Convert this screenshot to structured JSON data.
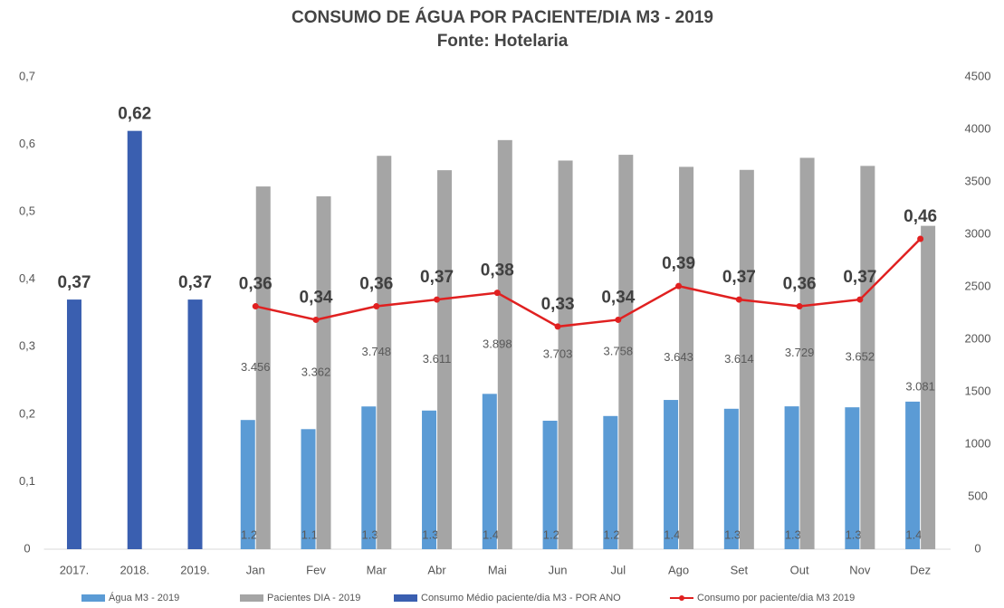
{
  "chart_data": {
    "type": "bar",
    "title": "CONSUMO DE ÁGUA POR PACIENTE/DIA M3 - 2019",
    "subtitle": "Fonte: Hotelaria",
    "categories": [
      "2017.",
      "2018.",
      "2019.",
      "Jan",
      "Fev",
      "Mar",
      "Abr",
      "Mai",
      "Jun",
      "Jul",
      "Ago",
      "Set",
      "Out",
      "Nov",
      "Dez"
    ],
    "series": [
      {
        "name": "Água M3 - 2019",
        "color": "#5b9bd5",
        "type": "bar",
        "axis": "y2",
        "values": [
          null,
          null,
          null,
          1231,
          1144,
          1360,
          1321,
          1480,
          1224,
          1269,
          1422,
          1338,
          1361,
          1352,
          1406
        ],
        "value_labels": [
          null,
          null,
          null,
          "1.231",
          "1.144",
          "1.360",
          "1.321",
          "1.480",
          "1.224",
          "1.269",
          "1.422",
          "1.338",
          "1.361",
          "1.352",
          "1.406"
        ]
      },
      {
        "name": "Pacientes DIA - 2019",
        "color": "#a5a5a5",
        "type": "bar",
        "axis": "y2",
        "values": [
          null,
          null,
          null,
          3456,
          3362,
          3748,
          3611,
          3898,
          3703,
          3758,
          3643,
          3614,
          3729,
          3652,
          3081
        ],
        "value_labels": [
          null,
          null,
          null,
          "3.456",
          "3.362",
          "3.748",
          "3.611",
          "3.898",
          "3.703",
          "3.758",
          "3.643",
          "3.614",
          "3.729",
          "3.652",
          "3.081"
        ]
      },
      {
        "name": "Consumo Médio paciente/dia M3 - POR ANO",
        "color": "#3a5fb0",
        "type": "bar",
        "values": [
          0.37,
          0.62,
          0.37,
          null,
          null,
          null,
          null,
          null,
          null,
          null,
          null,
          null,
          null,
          null,
          null
        ],
        "value_labels": [
          "0,37",
          "0,62",
          "0,37",
          null,
          null,
          null,
          null,
          null,
          null,
          null,
          null,
          null,
          null,
          null,
          null
        ]
      },
      {
        "name": "Consumo por paciente/dia M3 2019",
        "color": "#e02020",
        "type": "line",
        "values": [
          null,
          null,
          null,
          0.36,
          0.34,
          0.36,
          0.37,
          0.38,
          0.33,
          0.34,
          0.39,
          0.37,
          0.36,
          0.37,
          0.46
        ],
        "value_labels": [
          null,
          null,
          null,
          "0,36",
          "0,34",
          "0,36",
          "0,37",
          "0,38",
          "0,33",
          "0,34",
          "0,39",
          "0,37",
          "0,36",
          "0,37",
          "0,46"
        ]
      }
    ],
    "ylim": [
      0,
      0.7
    ],
    "yticks": [
      0,
      {
        "value": 0.1,
        "label": "0,1"
      },
      {
        "value": 0.2,
        "label": "0,2"
      },
      {
        "value": 0.3,
        "label": "0,3"
      },
      {
        "value": 0.4,
        "label": "0,4"
      },
      {
        "value": 0.5,
        "label": "0,5"
      },
      {
        "value": 0.6,
        "label": "0,6"
      },
      {
        "value": 0.7,
        "label": "0,7"
      }
    ],
    "y2lim": [
      0,
      4500
    ],
    "y2ticks": [
      0,
      500,
      1000,
      1500,
      2000,
      2500,
      3000,
      3500,
      4000,
      4500
    ],
    "legend": "bottom"
  }
}
